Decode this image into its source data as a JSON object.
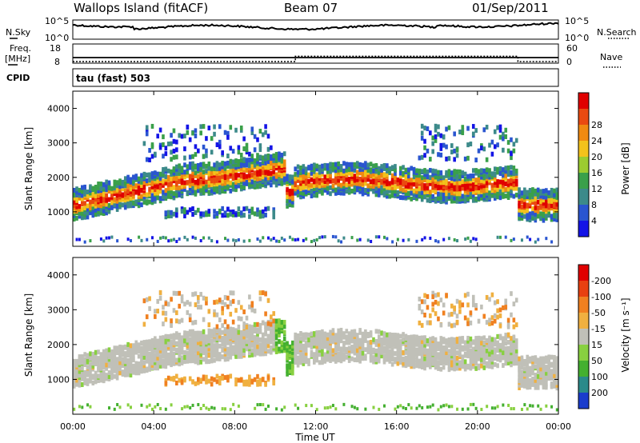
{
  "header": {
    "site": "Wallops Island (fitACF)",
    "beam": "Beam 07",
    "date": "01/Sep/2011"
  },
  "labels": {
    "nsky": "N.Sky",
    "freq_top": "Freq.",
    "freq_unit": "[MHz]",
    "cpid": "CPID",
    "nsearch": "N.Search",
    "nave": "Nave",
    "cpid_value": "tau (fast) 503"
  },
  "colors": {
    "frame": "#000000",
    "background": "#ffffff"
  },
  "chart_data": [
    {
      "type": "line",
      "panel": "noise",
      "left_ticks": [
        "10^5",
        "10^0"
      ],
      "right_ticks": [
        "10^5",
        "10^0"
      ]
    },
    {
      "type": "line",
      "panel": "frequency",
      "left_ticks": [
        "18",
        "8"
      ],
      "right_ticks": [
        "60",
        "0"
      ],
      "series": [
        {
          "name": "Freq.",
          "x": [
            0,
            24
          ],
          "y": [
            10.5,
            10.5
          ]
        },
        {
          "name": "Nave",
          "x": [
            0,
            11,
            11,
            22,
            22,
            24
          ],
          "y": [
            0,
            0,
            20,
            20,
            0,
            0
          ]
        }
      ]
    },
    {
      "type": "heatmap",
      "panel": "power",
      "xlim": [
        0,
        24
      ],
      "ylim": [
        0,
        4500
      ],
      "yticks": [
        1000,
        2000,
        3000,
        4000
      ],
      "ylabel": "Slant Range [km]",
      "colorbar": {
        "label": "Power [dB]",
        "ticks": [
          "4",
          "8",
          "12",
          "16",
          "20",
          "24",
          "28"
        ],
        "colors": [
          "#1414e6",
          "#2a55d0",
          "#3c8a8a",
          "#3aa04a",
          "#9ccc30",
          "#f3c21b",
          "#f08a10",
          "#ea4a10",
          "#e00000"
        ]
      }
    },
    {
      "type": "heatmap",
      "panel": "velocity",
      "xlim": [
        0,
        24
      ],
      "ylim": [
        0,
        4500
      ],
      "yticks": [
        1000,
        2000,
        3000,
        4000
      ],
      "ylabel": "Slant Range [km]",
      "xlabel": "Time UT",
      "xticks": [
        "00:00",
        "04:00",
        "08:00",
        "12:00",
        "16:00",
        "20:00",
        "00:00"
      ],
      "colorbar": {
        "label": "Velocity [m s⁻¹]",
        "ticks": [
          "200",
          "100",
          "50",
          "15",
          "-15",
          "-50",
          "-100",
          "-200"
        ],
        "colors": [
          "#1a3ccc",
          "#2a8a8a",
          "#44b030",
          "#88d040",
          "#c0c0b8",
          "#f0b040",
          "#f08020",
          "#e84010",
          "#e00000"
        ]
      }
    }
  ]
}
